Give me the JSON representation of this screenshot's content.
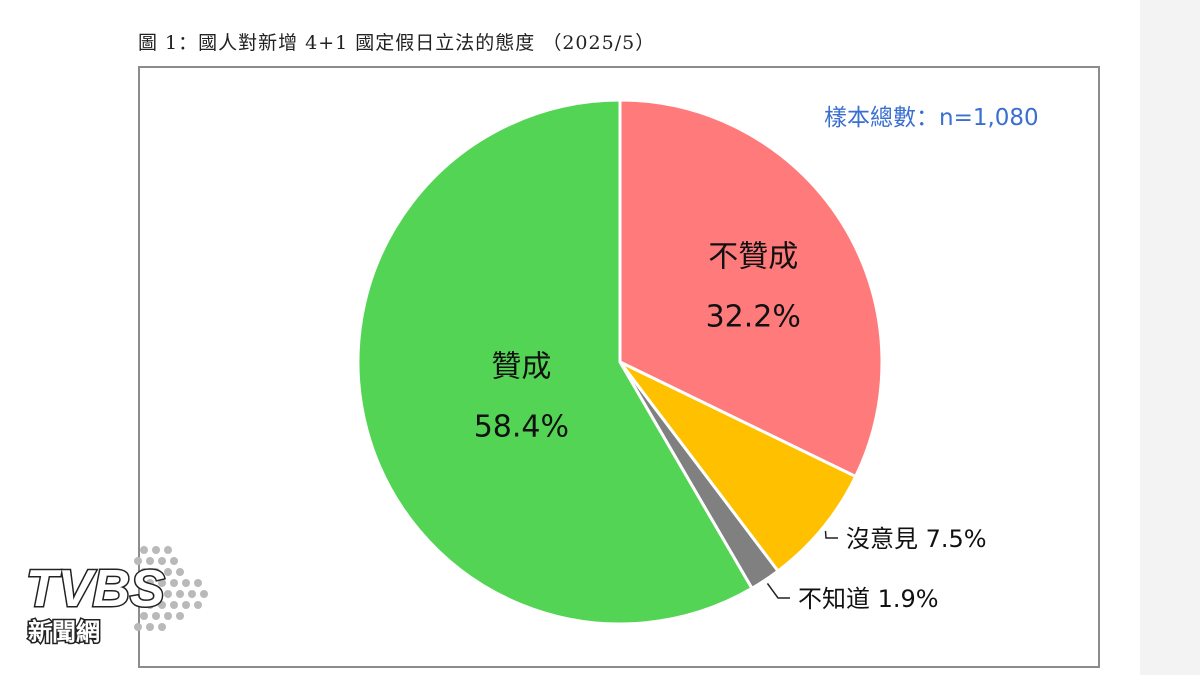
{
  "caption": "圖 1：國人對新增 4+1 國定假日立法的態度 （2025/5）",
  "sample_text": "樣本總數：n=1,080",
  "chart_data": {
    "type": "pie",
    "title": "圖 1：國人對新增 4+1 國定假日立法的態度 （2025/5）",
    "slices": [
      {
        "label": "不贊成",
        "value": 32.2,
        "value_text": "32.2%",
        "color": "#ff7b7b",
        "label_style": "inside"
      },
      {
        "label": "沒意見",
        "value": 7.5,
        "value_text": "7.5%",
        "color": "#ffc000",
        "label_style": "callout"
      },
      {
        "label": "不知道",
        "value": 1.9,
        "value_text": "1.9%",
        "color": "#808080",
        "label_style": "callout"
      },
      {
        "label": "贊成",
        "value": 58.4,
        "value_text": "58.4%",
        "color": "#54d454",
        "label_style": "inside"
      }
    ],
    "start": "12 o'clock",
    "direction": "clockwise"
  },
  "logo": {
    "text": "TVBS",
    "subtext": "新聞網"
  }
}
